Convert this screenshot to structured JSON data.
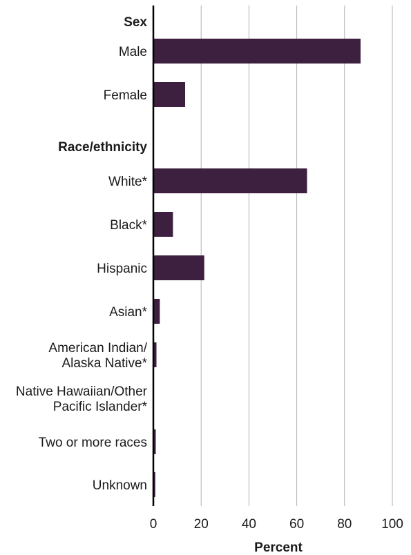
{
  "chart_data": {
    "type": "bar",
    "orientation": "horizontal",
    "xlabel": "Percent",
    "xlim": [
      0,
      100
    ],
    "x_ticks": [
      0,
      20,
      40,
      60,
      80,
      100
    ],
    "grid": "vertical",
    "bar_color": "#3d1f3f",
    "groups": [
      {
        "header": "Sex",
        "categories": [
          {
            "label": [
              "Male"
            ],
            "value": 86.7
          },
          {
            "label": [
              "Female"
            ],
            "value": 13.3
          }
        ]
      },
      {
        "header": "Race/ethnicity",
        "categories": [
          {
            "label": [
              "White*"
            ],
            "value": 64.3
          },
          {
            "label": [
              "Black*"
            ],
            "value": 8.2
          },
          {
            "label": [
              "Hispanic"
            ],
            "value": 21.3
          },
          {
            "label": [
              "Asian*"
            ],
            "value": 2.7
          },
          {
            "label": [
              "American Indian/",
              "Alaska Native*"
            ],
            "value": 1.3
          },
          {
            "label": [
              "Native Hawaiian/Other",
              "Pacific Islander*"
            ],
            "value": 0.1
          },
          {
            "label": [
              "Two or more races"
            ],
            "value": 1.0
          },
          {
            "label": [
              "Unknown"
            ],
            "value": 0.8
          }
        ]
      }
    ]
  }
}
